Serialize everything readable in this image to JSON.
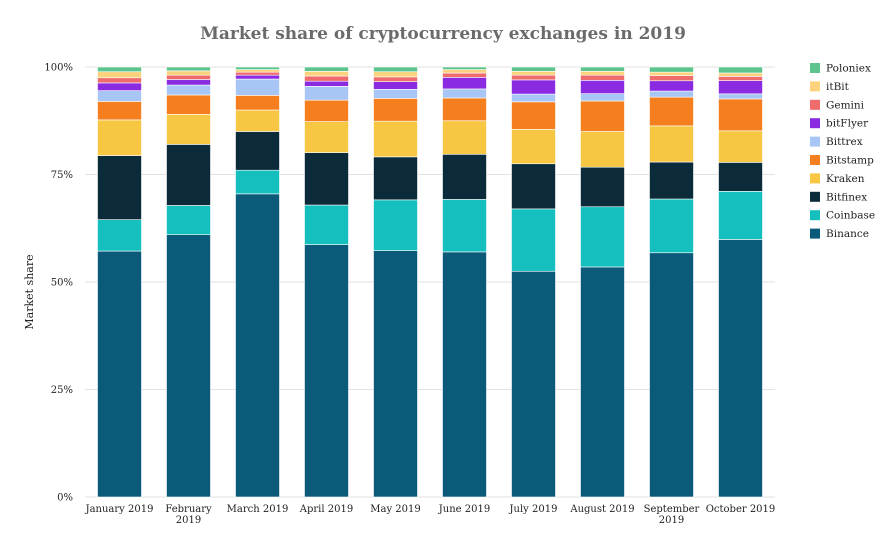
{
  "chart_data": {
    "type": "bar",
    "stacked": true,
    "title": "Market share of cryptocurrency exchanges in 2019",
    "xlabel": "",
    "ylabel": "Market share",
    "ylim": [
      0,
      100
    ],
    "yticks": [
      "0%",
      "25%",
      "50%",
      "75%",
      "100%"
    ],
    "grid": true,
    "legend_position": "right",
    "categories": [
      [
        "January 2019"
      ],
      [
        "February",
        "2019"
      ],
      [
        "March 2019"
      ],
      [
        "April 2019"
      ],
      [
        "May 2019"
      ],
      [
        "June 2019"
      ],
      [
        "July 2019"
      ],
      [
        "August 2019"
      ],
      [
        "September",
        "2019"
      ],
      [
        "October 2019"
      ]
    ],
    "series": [
      {
        "name": "Binance",
        "color": "#0b5a7a",
        "values": [
          57.2,
          61.0,
          70.5,
          58.7,
          57.3,
          57.0,
          52.5,
          53.5,
          56.8,
          60.5
        ]
      },
      {
        "name": "Coinbase",
        "color": "#14bfbe",
        "values": [
          7.3,
          6.8,
          5.5,
          9.2,
          11.8,
          12.2,
          14.5,
          14.0,
          12.5,
          11.3
        ]
      },
      {
        "name": "Bitfinex",
        "color": "#0b2b3a",
        "values": [
          14.9,
          14.2,
          9.0,
          12.2,
          10.0,
          10.5,
          10.5,
          9.2,
          8.6,
          6.8
        ]
      },
      {
        "name": "Kraken",
        "color": "#f7c744",
        "values": [
          8.3,
          7.0,
          5.0,
          7.2,
          8.3,
          7.8,
          8.0,
          8.3,
          8.4,
          7.4
        ]
      },
      {
        "name": "Bitstamp",
        "color": "#f57f1f",
        "values": [
          4.3,
          4.5,
          3.4,
          5.0,
          5.3,
          5.3,
          6.4,
          7.1,
          6.7,
          7.5
        ]
      },
      {
        "name": "Bittrex",
        "color": "#a8c6f5",
        "values": [
          2.5,
          2.3,
          3.8,
          3.2,
          2.1,
          2.1,
          1.8,
          1.7,
          1.4,
          1.2
        ]
      },
      {
        "name": "bitFlyer",
        "color": "#8a2be2",
        "values": [
          1.8,
          1.3,
          0.9,
          1.2,
          1.8,
          2.7,
          3.3,
          3.1,
          2.4,
          3.1
        ]
      },
      {
        "name": "Gemini",
        "color": "#ee6c6c",
        "values": [
          1.2,
          1.0,
          0.7,
          1.2,
          1.1,
          1.0,
          1.1,
          1.2,
          1.2,
          1.0
        ]
      },
      {
        "name": "itBit",
        "color": "#fcd27d",
        "values": [
          1.4,
          1.0,
          0.6,
          1.1,
          1.2,
          0.8,
          0.9,
          0.9,
          0.8,
          0.8
        ]
      },
      {
        "name": "Poloniex",
        "color": "#5cc48c",
        "values": [
          1.1,
          0.9,
          0.6,
          1.0,
          1.1,
          0.6,
          1.0,
          1.0,
          1.2,
          1.4
        ]
      }
    ]
  }
}
